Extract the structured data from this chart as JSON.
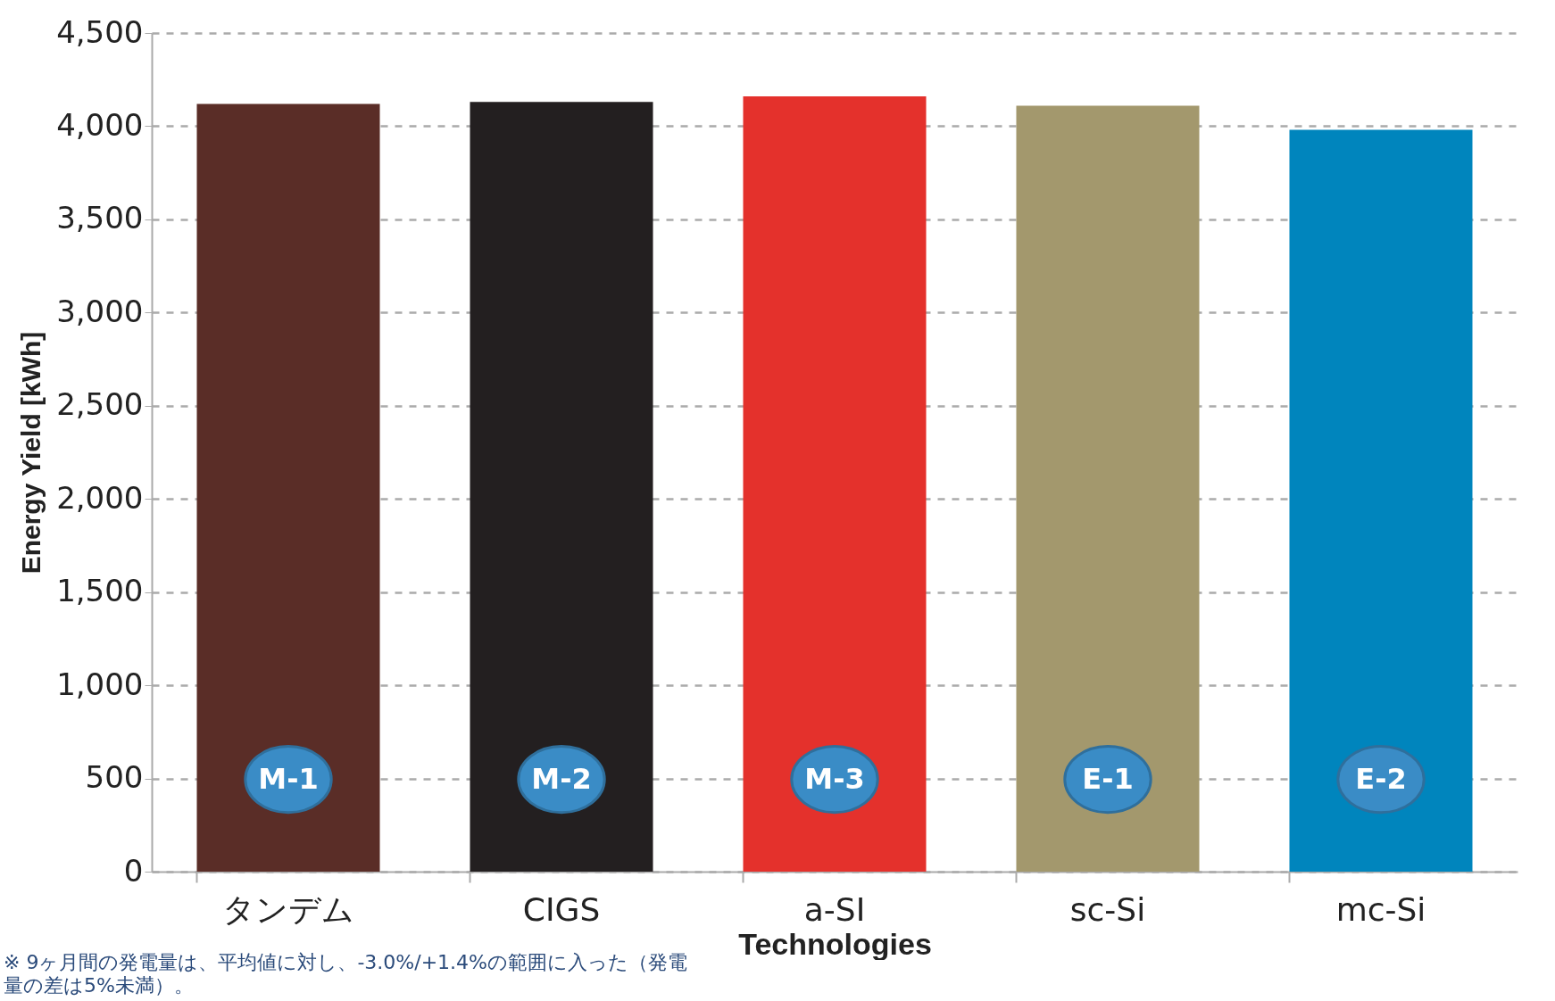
{
  "chart_data": {
    "type": "bar",
    "xlabel": "Technologies",
    "ylabel": "Energy Yield [kWh]",
    "categories": [
      "タンデム",
      "CIGS",
      "a-SI",
      "sc-Si",
      "mc-Si"
    ],
    "values": [
      4120,
      4130,
      4160,
      4110,
      3980
    ],
    "colors": [
      "#5a2d27",
      "#231f20",
      "#e4312c",
      "#a3986d",
      "#0085bd"
    ],
    "ylim": [
      0,
      4500
    ],
    "yticks": [
      {
        "value": 0,
        "label": "0"
      },
      {
        "value": 500,
        "label": "500"
      },
      {
        "value": 1000,
        "label": "1,000"
      },
      {
        "value": 1500,
        "label": "1,500"
      },
      {
        "value": 2000,
        "label": "2,000"
      },
      {
        "value": 2500,
        "label": "2,500"
      },
      {
        "value": 3000,
        "label": "3,000"
      },
      {
        "value": 3500,
        "label": "3,500"
      },
      {
        "value": 4000,
        "label": "4,000"
      },
      {
        "value": 4500,
        "label": "4,500"
      }
    ],
    "grid": "y",
    "annotations": [
      "M-1",
      "M-2",
      "M-3",
      "E-1",
      "E-2",
      "※ 9ヶ月間の発電量は、平均値に対し、-3.0%/+1.4%の範囲に入った（発電量の差は5%未満）。"
    ]
  }
}
